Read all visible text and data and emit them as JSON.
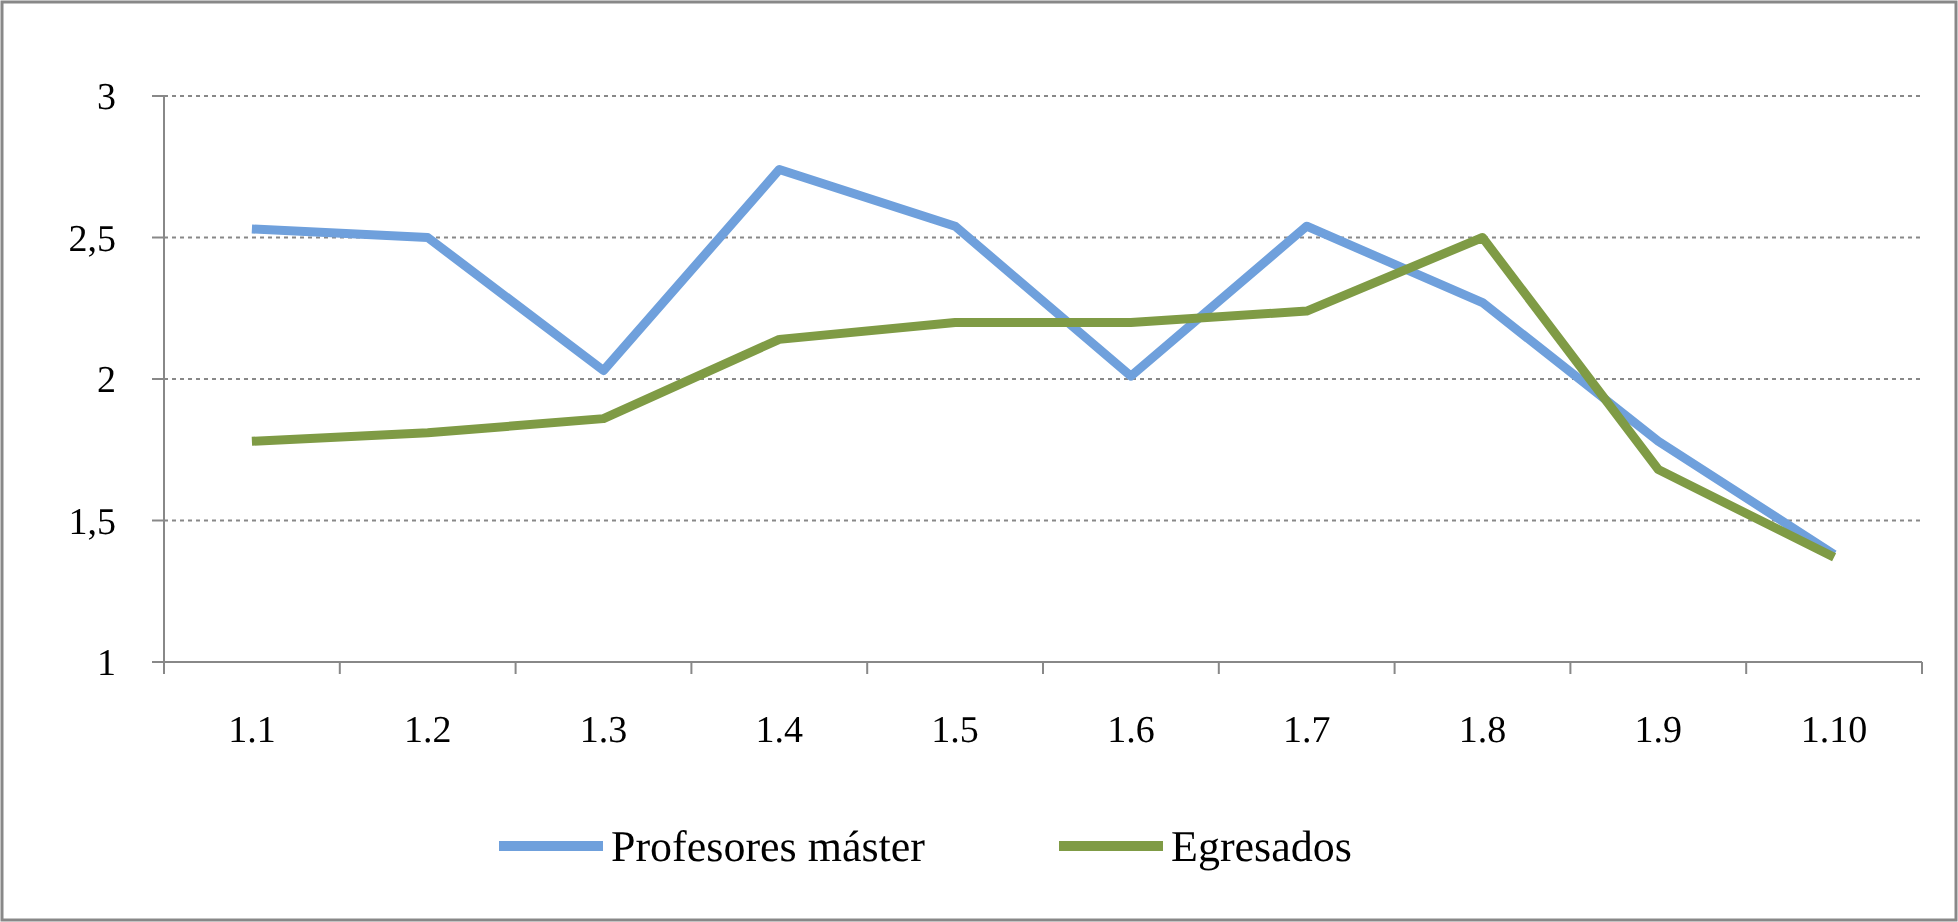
{
  "chart_data": {
    "type": "line",
    "categories": [
      "1.1",
      "1.2",
      "1.3",
      "1.4",
      "1.5",
      "1.6",
      "1.7",
      "1.8",
      "1.9",
      "1.10"
    ],
    "series": [
      {
        "name": "Profesores máster",
        "color": "#6fa0dc",
        "values": [
          2.53,
          2.5,
          2.03,
          2.74,
          2.54,
          2.01,
          2.54,
          2.27,
          1.78,
          1.38
        ]
      },
      {
        "name": "Egresados",
        "color": "#7f9b45",
        "values": [
          1.78,
          1.81,
          1.86,
          2.14,
          2.2,
          2.2,
          2.24,
          2.5,
          1.68,
          1.37
        ]
      }
    ],
    "ylim": [
      1,
      3
    ],
    "yticks": [
      1,
      {
        "value": 1.5,
        "label": "1,5"
      },
      2,
      {
        "value": 2.5,
        "label": "2,5"
      },
      3
    ],
    "grid": "y",
    "legend": "bottom",
    "line_style": "solid",
    "marker": "none"
  }
}
